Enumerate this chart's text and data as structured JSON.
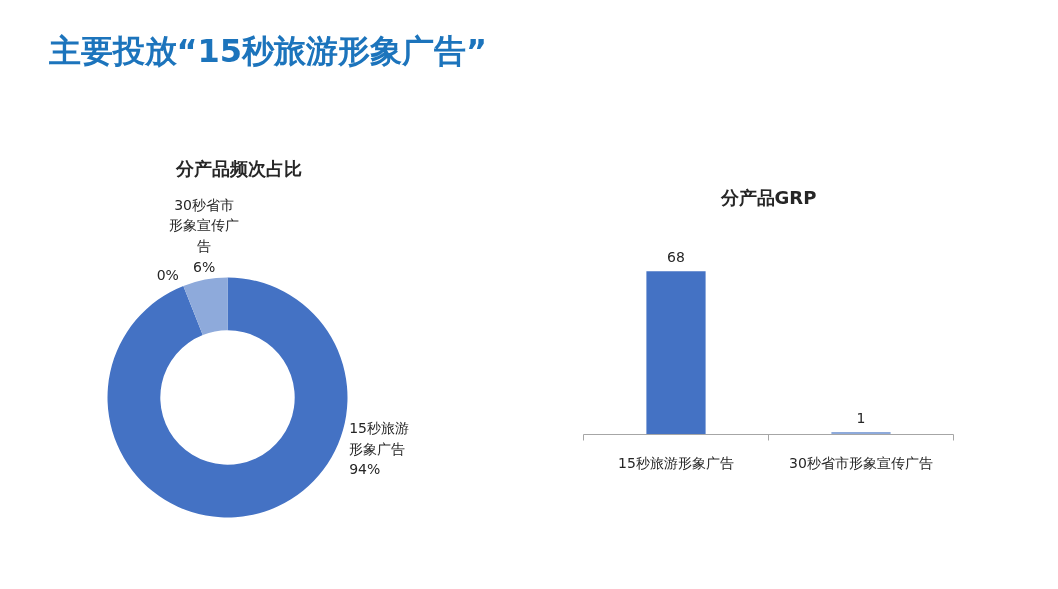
{
  "chart_data": [
    {
      "type": "donut",
      "title": "分产品频次占比",
      "categories": [
        "15秒旅游形象广告",
        null,
        "30秒省市形象宣传广告"
      ],
      "values": [
        94,
        0,
        6
      ],
      "colors": [
        "#4472c4",
        "#a9bfe6",
        "#8eaadb"
      ],
      "value_labels": [
        "94%",
        "0%",
        "6%"
      ],
      "annotations": [
        "主要投放“15秒旅游形象广告”"
      ]
    },
    {
      "type": "bar",
      "title": "分产品GRP",
      "categories": [
        "15秒旅游形象广告",
        "30秒省市形象宣传广告"
      ],
      "values": [
        68,
        1
      ],
      "colors": [
        "#4472c4",
        "#8eaadb"
      ],
      "data_labels": true
    }
  ]
}
